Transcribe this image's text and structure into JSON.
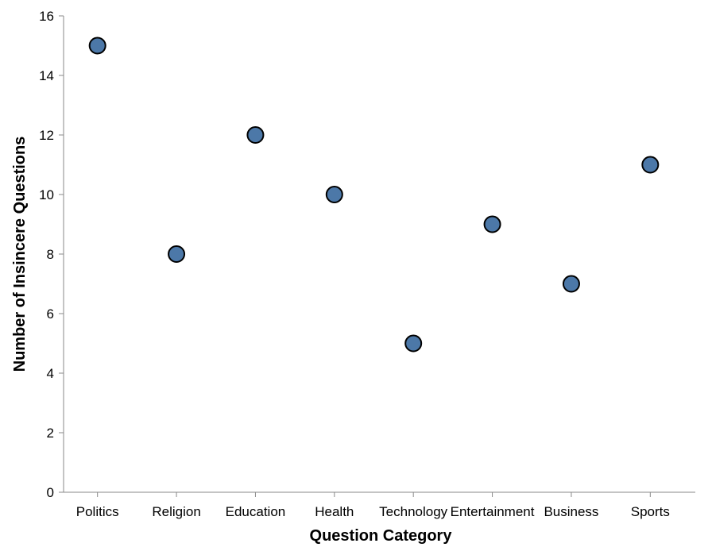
{
  "chart_data": {
    "type": "scatter",
    "xlabel": "Question Category",
    "ylabel": "Number of Insincere Questions",
    "categories": [
      "Politics",
      "Religion",
      "Education",
      "Health",
      "Technology",
      "Entertainment",
      "Business",
      "Sports"
    ],
    "values": [
      15,
      8,
      12,
      10,
      5,
      9,
      7,
      11
    ],
    "ylim": [
      0,
      16
    ],
    "yticks": [
      0,
      2,
      4,
      6,
      8,
      10,
      12,
      14,
      16
    ],
    "grid": false,
    "legend": "none",
    "colors": {
      "point_fill": "#4c78a8",
      "point_stroke": "#000000",
      "axis": "#888888"
    }
  }
}
